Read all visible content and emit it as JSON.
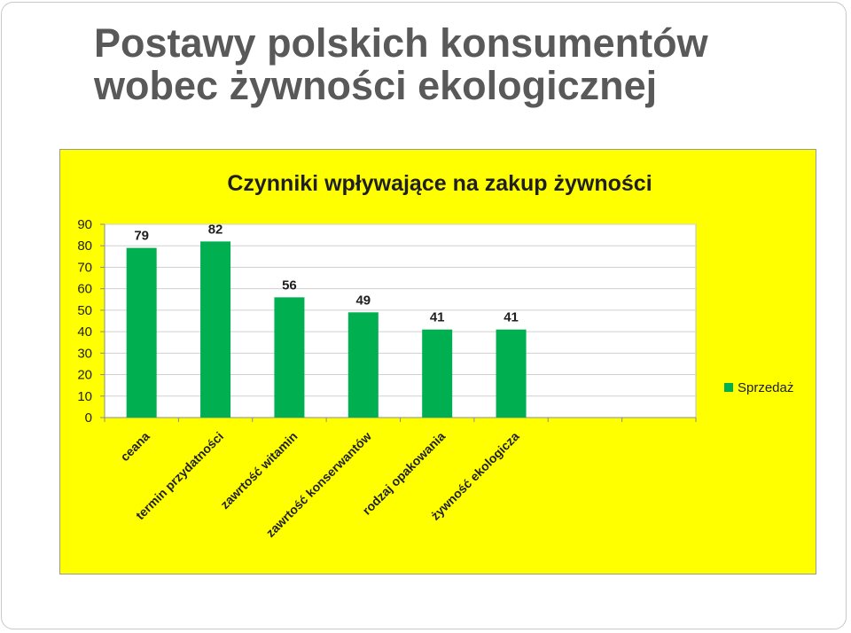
{
  "slide": {
    "title_line1": "Postawy polskich konsumentów",
    "title_line2": "wobec żywności ekologicznej"
  },
  "colors": {
    "panel_background": "#ffff00",
    "bar": "#00b050",
    "title_text": "#595959"
  },
  "chart_data": {
    "type": "bar",
    "title": "Czynniki wpływające na zakup żywności",
    "categories": [
      "ceana",
      "termin przydatności",
      "zawrtość witamin",
      "zawrtość konserwantów",
      "rodzaj opakowania",
      "żywność ekologicza",
      "",
      ""
    ],
    "series": [
      {
        "name": "Sprzedaż",
        "values": [
          79,
          82,
          56,
          49,
          41,
          41,
          null,
          null
        ]
      }
    ],
    "ylim": [
      0,
      90
    ],
    "yticks": [
      0,
      10,
      20,
      30,
      40,
      50,
      60,
      70,
      80,
      90
    ],
    "xlabel": "",
    "ylabel": "",
    "grid": true,
    "legend_position": "right",
    "data_labels": true
  }
}
